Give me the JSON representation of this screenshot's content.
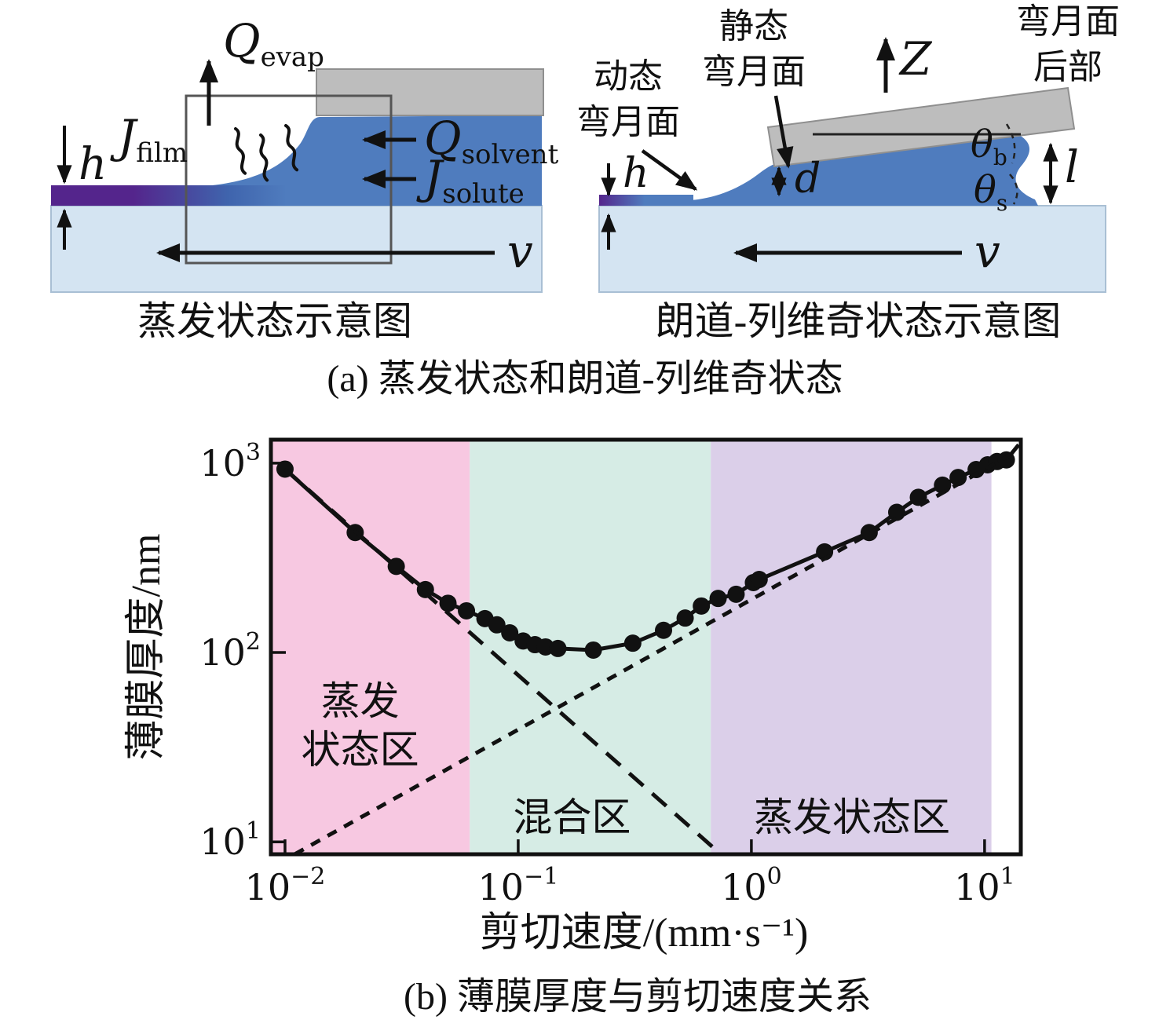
{
  "panel_a": {
    "caption": "(a) 蒸发状态和朗道-列维奇状态",
    "evaporation_diagram": {
      "caption": "蒸发状态示意图",
      "q_evap": {
        "main": "Q",
        "sub": "evap"
      },
      "j_film": {
        "main": "J",
        "sub": "film"
      },
      "h_label": "h",
      "q_solvent": {
        "main": "Q",
        "sub": "solvent"
      },
      "j_solute": {
        "main": "J",
        "sub": "solute"
      },
      "v_label": "v"
    },
    "landau_diagram": {
      "caption": "朗道-列维奇状态示意图",
      "dynamic_meniscus": [
        "动态",
        "弯月面"
      ],
      "static_meniscus": [
        "静态",
        "弯月面"
      ],
      "meniscus_rear": [
        "弯月面",
        "后部"
      ],
      "z_label": "Z",
      "h_label": "h",
      "d_label": "d",
      "theta_b": {
        "main": "θ",
        "sub": "b"
      },
      "theta_s": {
        "main": "θ",
        "sub": "s"
      },
      "l_label": "l",
      "v_label": "v"
    },
    "colors": {
      "liquid_blue": "#4f7cbe",
      "substrate_blue": "#d4e4f2",
      "blade_gray": "#bdbdbd",
      "film_purple": "#54258c"
    }
  },
  "panel_b": {
    "caption": "(b) 薄膜厚度与剪切速度关系"
  },
  "chart_data": {
    "type": "line",
    "title": "",
    "xlabel": "剪切速度/(mm·s⁻¹)",
    "ylabel": "薄膜厚度/nm",
    "x_scale": "log",
    "y_scale": "log",
    "xlim": [
      0.0087,
      14.3
    ],
    "ylim": [
      8.6,
      1330
    ],
    "x_ticks": [
      0.01,
      0.1,
      1,
      10
    ],
    "y_ticks": [
      10,
      100,
      1000
    ],
    "grid": false,
    "series": [
      {
        "name": "film-thickness-data",
        "style": "solid-markers",
        "points": [
          [
            0.01,
            930
          ],
          [
            0.02,
            430
          ],
          [
            0.03,
            285
          ],
          [
            0.04,
            215
          ],
          [
            0.05,
            182
          ],
          [
            0.06,
            166
          ],
          [
            0.072,
            151
          ],
          [
            0.081,
            140
          ],
          [
            0.092,
            127
          ],
          [
            0.105,
            115
          ],
          [
            0.118,
            110
          ],
          [
            0.131,
            107
          ],
          [
            0.148,
            105
          ],
          [
            0.21,
            103
          ],
          [
            0.31,
            112
          ],
          [
            0.42,
            131
          ],
          [
            0.52,
            152
          ],
          [
            0.61,
            176
          ],
          [
            0.72,
            193
          ],
          [
            0.86,
            203
          ],
          [
            1.02,
            234
          ],
          [
            1.08,
            243
          ],
          [
            2.06,
            340
          ],
          [
            3.2,
            430
          ],
          [
            4.2,
            550
          ],
          [
            5.2,
            660
          ],
          [
            6.6,
            765
          ],
          [
            7.7,
            840
          ],
          [
            9.2,
            925
          ],
          [
            10.3,
            980
          ],
          [
            11.3,
            1020
          ],
          [
            12.4,
            1040
          ]
        ],
        "tail": [
          14.0,
          1250
        ]
      },
      {
        "name": "evaporation-regime-fit",
        "style": "dashed-long",
        "points": [
          [
            0.01,
            930
          ],
          [
            0.74,
            8.6
          ]
        ]
      },
      {
        "name": "landau-levich-fit",
        "style": "dashed-short",
        "points": [
          [
            0.011,
            8.6
          ],
          [
            13.7,
            1150
          ]
        ]
      }
    ],
    "regions": [
      {
        "label": "蒸发\n状态区",
        "from": 0.0087,
        "to": 0.062,
        "color": "#f7c8e1",
        "label_pos": {
          "v": 0.021,
          "h": 42
        }
      },
      {
        "label": "混合区",
        "from": 0.062,
        "to": 0.67,
        "color": "#d6ece5",
        "label_pos": {
          "v": 0.17,
          "h": 13.5
        }
      },
      {
        "label": "蒸发状态区",
        "from": 0.67,
        "to": 10.7,
        "color": "#dbcfe9",
        "label_pos": {
          "v": 2.7,
          "h": 13.5
        }
      }
    ]
  }
}
